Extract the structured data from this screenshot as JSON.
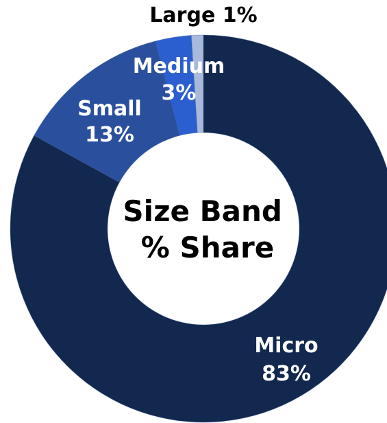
{
  "chart_data": {
    "type": "pie",
    "variant": "donut",
    "center_title_lines": [
      "Size Band",
      "% Share"
    ],
    "slices": [
      {
        "name": "Micro",
        "value": 83,
        "label": "83%",
        "color": "#13284f",
        "label_color": "#ffffff"
      },
      {
        "name": "Small",
        "value": 13,
        "label": "13%",
        "color": "#2a4f9d",
        "label_color": "#ffffff"
      },
      {
        "name": "Medium",
        "value": 3,
        "label": "3%",
        "color": "#2b5fcf",
        "label_color": "#ffffff"
      },
      {
        "name": "Large",
        "value": 1,
        "label": "1%",
        "color": "#a9b9dc",
        "label_color": "#000000"
      }
    ],
    "start_angle": "12 o'clock",
    "direction": "clockwise"
  }
}
